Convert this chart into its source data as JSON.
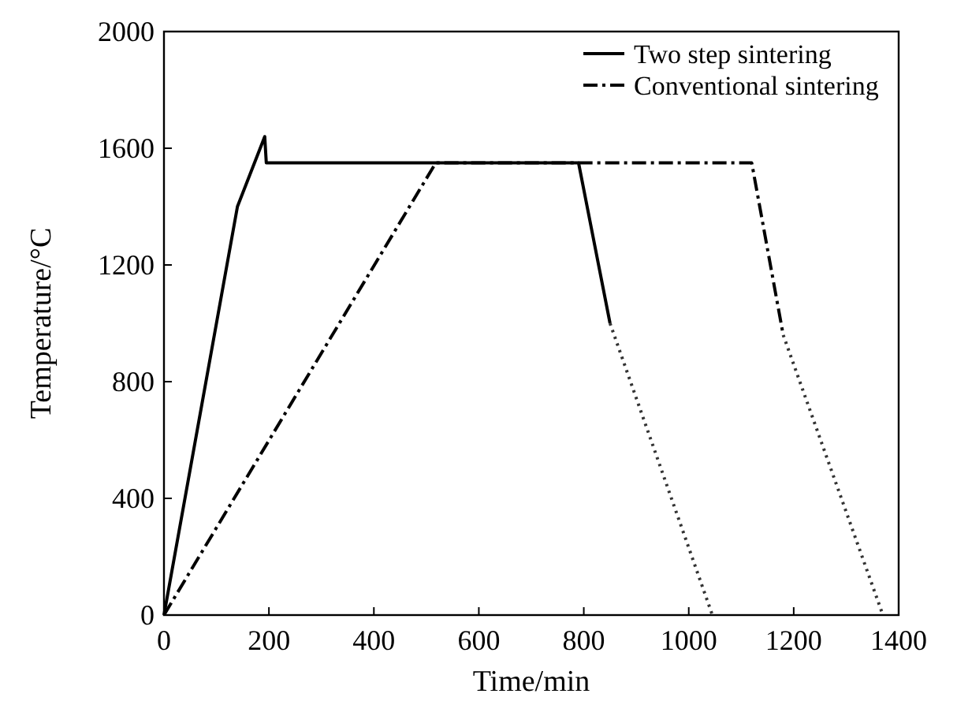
{
  "chart_data": {
    "type": "line",
    "xlabel": "Time/min",
    "ylabel": "Temperature/°C",
    "xlim": [
      0,
      1400
    ],
    "ylim": [
      0,
      2000
    ],
    "xticks": [
      0,
      200,
      400,
      600,
      800,
      1000,
      1200,
      1400
    ],
    "yticks": [
      0,
      400,
      800,
      1200,
      1600,
      2000
    ],
    "grid": false,
    "legend": "top right",
    "series": [
      {
        "name": "Two step sintering",
        "color": "#000000",
        "line_style": "solid",
        "x": [
          0,
          140,
          192,
          195,
          790,
          850
        ],
        "values": [
          0,
          1400,
          1640,
          1550,
          1550,
          1000
        ]
      },
      {
        "name": "Conventional sintering",
        "color": "#000000",
        "line_style": "dashdot",
        "x": [
          0,
          518,
          1120,
          1180
        ],
        "values": [
          0,
          1550,
          1550,
          960
        ]
      },
      {
        "color": "#333333",
        "line_style": "dotted",
        "x": [
          850,
          1045
        ],
        "values": [
          1000,
          0
        ]
      },
      {
        "color": "#333333",
        "line_style": "dotted",
        "x": [
          1180,
          1370
        ],
        "values": [
          960,
          0
        ]
      }
    ]
  }
}
